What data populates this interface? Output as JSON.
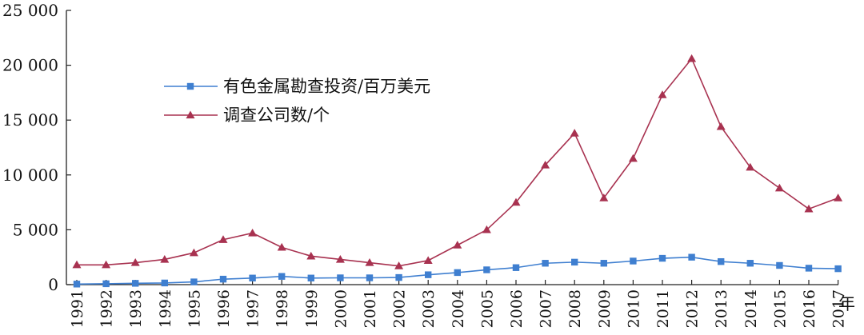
{
  "chart_data": {
    "type": "line",
    "categories": [
      "1991",
      "1992",
      "1993",
      "1994",
      "1995",
      "1996",
      "1997",
      "1998",
      "1999",
      "2000",
      "2001",
      "2002",
      "2003",
      "2004",
      "2005",
      "2006",
      "2007",
      "2008",
      "2009",
      "2010",
      "2011",
      "2012",
      "2013",
      "2014",
      "2015",
      "2016",
      "2017"
    ],
    "series": [
      {
        "name": "有色金属勘查投资/百万美元",
        "color": "#3f7fd0",
        "marker": "square",
        "values": [
          50,
          80,
          120,
          150,
          250,
          500,
          600,
          750,
          600,
          620,
          620,
          650,
          900,
          1100,
          1350,
          1550,
          1950,
          2050,
          1950,
          2150,
          2400,
          2500,
          2100,
          1950,
          1750,
          1500,
          1450
        ]
      },
      {
        "name": "调查公司数/个",
        "color": "#a83250",
        "marker": "triangle",
        "values": [
          1800,
          1800,
          2000,
          2300,
          2900,
          4100,
          4700,
          3400,
          2600,
          2300,
          2000,
          1700,
          2200,
          3600,
          5000,
          7500,
          10900,
          13800,
          7900,
          11500,
          17300,
          20600,
          14400,
          10700,
          8800,
          6900,
          7900
        ]
      }
    ],
    "y_ticks": [
      "0",
      "5 000",
      "10 000",
      "15 000",
      "20 000",
      "25 000"
    ],
    "y_tick_values": [
      0,
      5000,
      10000,
      15000,
      20000,
      25000
    ],
    "x_unit": "年",
    "ylim": [
      0,
      25000
    ],
    "title": "",
    "xlabel": "",
    "ylabel": "",
    "grid": false,
    "legend_placement": "upper-left"
  }
}
